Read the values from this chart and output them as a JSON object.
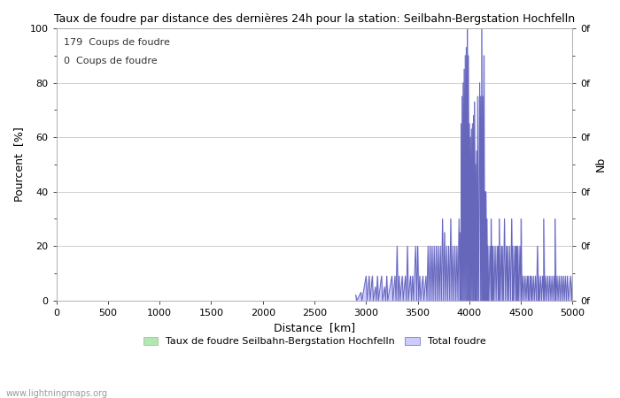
{
  "title": "Taux de foudre par distance des dernières 24h pour la station: Seilbahn-Bergstation Hochfelln",
  "xlabel": "Distance  [km]",
  "ylabel_left": "Pourcent  [%]",
  "ylabel_right": "Nb",
  "legend_label1": "Taux de foudre Seilbahn-Bergstation Hochfelln",
  "legend_label2": "Total foudre",
  "annotation1": "179  Coups de foudre",
  "annotation2": "0  Coups de foudre",
  "watermark": "www.lightningmaps.org",
  "xlim": [
    0,
    5000
  ],
  "ylim": [
    0,
    100
  ],
  "xticks": [
    0,
    500,
    1000,
    1500,
    2000,
    2500,
    3000,
    3500,
    4000,
    4500,
    5000
  ],
  "yticks_left": [
    0,
    20,
    40,
    60,
    80,
    100
  ],
  "yticks_minor": [
    10,
    30,
    50,
    70,
    90
  ],
  "right_tick_labels": [
    "0f",
    "0f",
    "0f",
    "0f",
    "0f",
    "0f"
  ],
  "right_tick_minor_labels": [
    "",
    "",
    "",
    "",
    ""
  ],
  "fill_color": "#ccccff",
  "line_color": "#6666bb",
  "green_fill": "#b0e8b0",
  "background_color": "#ffffff",
  "grid_color": "#bbbbbb",
  "spike_data": [
    [
      2900,
      2
    ],
    [
      2910,
      0
    ],
    [
      2950,
      3
    ],
    [
      2960,
      0
    ],
    [
      3000,
      9
    ],
    [
      3010,
      0
    ],
    [
      3030,
      9
    ],
    [
      3040,
      0
    ],
    [
      3060,
      9
    ],
    [
      3070,
      0
    ],
    [
      3090,
      5
    ],
    [
      3100,
      0
    ],
    [
      3110,
      9
    ],
    [
      3120,
      0
    ],
    [
      3150,
      9
    ],
    [
      3160,
      0
    ],
    [
      3180,
      5
    ],
    [
      3190,
      0
    ],
    [
      3200,
      9
    ],
    [
      3210,
      0
    ],
    [
      3250,
      9
    ],
    [
      3260,
      0
    ],
    [
      3280,
      9
    ],
    [
      3290,
      0
    ],
    [
      3300,
      20
    ],
    [
      3310,
      0
    ],
    [
      3320,
      9
    ],
    [
      3330,
      0
    ],
    [
      3350,
      9
    ],
    [
      3360,
      0
    ],
    [
      3380,
      9
    ],
    [
      3390,
      0
    ],
    [
      3400,
      20
    ],
    [
      3410,
      0
    ],
    [
      3430,
      9
    ],
    [
      3440,
      0
    ],
    [
      3450,
      9
    ],
    [
      3460,
      0
    ],
    [
      3480,
      20
    ],
    [
      3490,
      0
    ],
    [
      3500,
      20
    ],
    [
      3510,
      0
    ],
    [
      3520,
      9
    ],
    [
      3530,
      0
    ],
    [
      3550,
      9
    ],
    [
      3560,
      0
    ],
    [
      3580,
      9
    ],
    [
      3590,
      0
    ],
    [
      3600,
      20
    ],
    [
      3610,
      0
    ],
    [
      3620,
      20
    ],
    [
      3630,
      0
    ],
    [
      3640,
      20
    ],
    [
      3650,
      0
    ],
    [
      3660,
      20
    ],
    [
      3670,
      0
    ],
    [
      3680,
      20
    ],
    [
      3690,
      0
    ],
    [
      3700,
      20
    ],
    [
      3710,
      0
    ],
    [
      3720,
      20
    ],
    [
      3730,
      0
    ],
    [
      3740,
      30
    ],
    [
      3750,
      0
    ],
    [
      3760,
      25
    ],
    [
      3770,
      0
    ],
    [
      3780,
      20
    ],
    [
      3790,
      0
    ],
    [
      3800,
      20
    ],
    [
      3810,
      0
    ],
    [
      3820,
      30
    ],
    [
      3830,
      0
    ],
    [
      3840,
      20
    ],
    [
      3850,
      0
    ],
    [
      3860,
      20
    ],
    [
      3870,
      0
    ],
    [
      3880,
      20
    ],
    [
      3890,
      0
    ],
    [
      3900,
      30
    ],
    [
      3910,
      0
    ],
    [
      3910,
      25
    ],
    [
      3920,
      0
    ],
    [
      3920,
      65
    ],
    [
      3930,
      0
    ],
    [
      3930,
      75
    ],
    [
      3940,
      0
    ],
    [
      3940,
      80
    ],
    [
      3950,
      0
    ],
    [
      3950,
      85
    ],
    [
      3960,
      0
    ],
    [
      3960,
      90
    ],
    [
      3970,
      0
    ],
    [
      3970,
      93
    ],
    [
      3980,
      0
    ],
    [
      3980,
      100
    ],
    [
      3990,
      0
    ],
    [
      3990,
      90
    ],
    [
      4000,
      0
    ],
    [
      4000,
      65
    ],
    [
      4010,
      0
    ],
    [
      4010,
      60
    ],
    [
      4020,
      0
    ],
    [
      4020,
      63
    ],
    [
      4030,
      0
    ],
    [
      4030,
      65
    ],
    [
      4040,
      0
    ],
    [
      4040,
      68
    ],
    [
      4050,
      0
    ],
    [
      4050,
      73
    ],
    [
      4060,
      0
    ],
    [
      4060,
      50
    ],
    [
      4070,
      0
    ],
    [
      4070,
      55
    ],
    [
      4080,
      0
    ],
    [
      4080,
      75
    ],
    [
      4090,
      0
    ],
    [
      4100,
      80
    ],
    [
      4110,
      0
    ],
    [
      4110,
      75
    ],
    [
      4120,
      0
    ],
    [
      4120,
      100
    ],
    [
      4130,
      0
    ],
    [
      4130,
      75
    ],
    [
      4140,
      0
    ],
    [
      4140,
      90
    ],
    [
      4150,
      0
    ],
    [
      4150,
      40
    ],
    [
      4160,
      0
    ],
    [
      4160,
      40
    ],
    [
      4170,
      0
    ],
    [
      4170,
      30
    ],
    [
      4180,
      0
    ],
    [
      4180,
      20
    ],
    [
      4190,
      0
    ],
    [
      4200,
      20
    ],
    [
      4210,
      0
    ],
    [
      4210,
      30
    ],
    [
      4220,
      0
    ],
    [
      4220,
      20
    ],
    [
      4230,
      0
    ],
    [
      4230,
      20
    ],
    [
      4240,
      0
    ],
    [
      4250,
      20
    ],
    [
      4260,
      0
    ],
    [
      4270,
      20
    ],
    [
      4280,
      0
    ],
    [
      4280,
      20
    ],
    [
      4290,
      0
    ],
    [
      4290,
      30
    ],
    [
      4300,
      0
    ],
    [
      4310,
      20
    ],
    [
      4320,
      0
    ],
    [
      4320,
      20
    ],
    [
      4330,
      0
    ],
    [
      4340,
      30
    ],
    [
      4350,
      0
    ],
    [
      4360,
      20
    ],
    [
      4370,
      0
    ],
    [
      4370,
      20
    ],
    [
      4380,
      0
    ],
    [
      4390,
      20
    ],
    [
      4400,
      0
    ],
    [
      4410,
      30
    ],
    [
      4420,
      0
    ],
    [
      4420,
      20
    ],
    [
      4430,
      0
    ],
    [
      4440,
      20
    ],
    [
      4450,
      0
    ],
    [
      4450,
      20
    ],
    [
      4460,
      0
    ],
    [
      4460,
      20
    ],
    [
      4470,
      0
    ],
    [
      4470,
      20
    ],
    [
      4480,
      0
    ],
    [
      4490,
      20
    ],
    [
      4500,
      0
    ],
    [
      4500,
      30
    ],
    [
      4510,
      0
    ],
    [
      4520,
      9
    ],
    [
      4530,
      0
    ],
    [
      4540,
      9
    ],
    [
      4550,
      0
    ],
    [
      4560,
      9
    ],
    [
      4570,
      0
    ],
    [
      4570,
      9
    ],
    [
      4580,
      0
    ],
    [
      4590,
      9
    ],
    [
      4600,
      0
    ],
    [
      4600,
      9
    ],
    [
      4610,
      0
    ],
    [
      4620,
      9
    ],
    [
      4630,
      0
    ],
    [
      4640,
      9
    ],
    [
      4650,
      0
    ],
    [
      4660,
      20
    ],
    [
      4670,
      0
    ],
    [
      4670,
      9
    ],
    [
      4680,
      0
    ],
    [
      4690,
      9
    ],
    [
      4700,
      0
    ],
    [
      4710,
      9
    ],
    [
      4720,
      0
    ],
    [
      4720,
      30
    ],
    [
      4730,
      0
    ],
    [
      4740,
      9
    ],
    [
      4750,
      0
    ],
    [
      4760,
      9
    ],
    [
      4770,
      0
    ],
    [
      4780,
      9
    ],
    [
      4790,
      0
    ],
    [
      4800,
      9
    ],
    [
      4810,
      0
    ],
    [
      4820,
      9
    ],
    [
      4830,
      0
    ],
    [
      4830,
      30
    ],
    [
      4840,
      0
    ],
    [
      4850,
      9
    ],
    [
      4860,
      0
    ],
    [
      4870,
      9
    ],
    [
      4880,
      0
    ],
    [
      4890,
      9
    ],
    [
      4900,
      0
    ],
    [
      4910,
      9
    ],
    [
      4920,
      0
    ],
    [
      4930,
      9
    ],
    [
      4940,
      0
    ],
    [
      4950,
      9
    ],
    [
      4960,
      0
    ],
    [
      4980,
      9
    ],
    [
      4990,
      0
    ],
    [
      5000,
      9
    ]
  ]
}
